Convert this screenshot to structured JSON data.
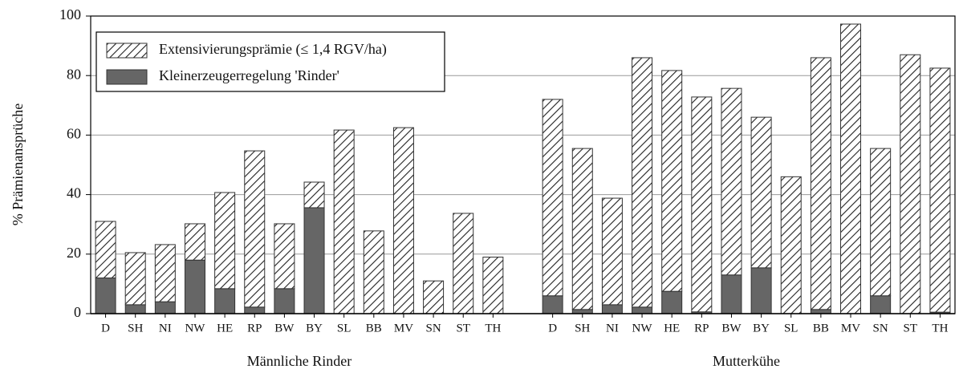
{
  "chart_data": {
    "type": "stacked_bar",
    "y_label": "% Prämienansprüche",
    "categories": [
      "D",
      "SH",
      "NI",
      "NW",
      "HE",
      "RP",
      "BW",
      "BY",
      "SL",
      "BB",
      "MV",
      "SN",
      "ST",
      "TH",
      null,
      "D",
      "SH",
      "NI",
      "NW",
      "HE",
      "RP",
      "BW",
      "BY",
      "SL",
      "BB",
      "MV",
      "SN",
      "ST",
      "TH"
    ],
    "group_labels": [
      "Männliche Rinder",
      "Mutterkühe"
    ],
    "series": [
      {
        "name": "Kleinerzeugerregelung 'Rinder'",
        "color": "#666666",
        "hatch": false,
        "values": [
          12,
          3,
          4,
          18,
          8.4,
          2.2,
          8.4,
          35.6,
          0,
          0,
          0,
          0,
          0,
          0,
          null,
          6,
          1.4,
          3,
          2.2,
          7.5,
          0.6,
          13,
          15.4,
          0,
          1.4,
          0,
          6,
          0,
          0.5
        ]
      },
      {
        "name": "Extensivierungsprämie (≤ 1,4 RGV/ha)",
        "color": "#222222",
        "hatch": true,
        "values": [
          19,
          17.5,
          19.2,
          12.2,
          32.3,
          52.5,
          21.8,
          8.6,
          61.7,
          27.8,
          62.5,
          11,
          33.7,
          19,
          null,
          66,
          54.1,
          35.8,
          83.8,
          74.2,
          72.2,
          62.7,
          50.6,
          46,
          84.6,
          97.3,
          49.5,
          87,
          82
        ]
      }
    ],
    "ylim": [
      0,
      100
    ],
    "yticks": [
      0,
      20,
      40,
      60,
      80,
      100
    ],
    "grid": true,
    "legend": "upper left"
  }
}
